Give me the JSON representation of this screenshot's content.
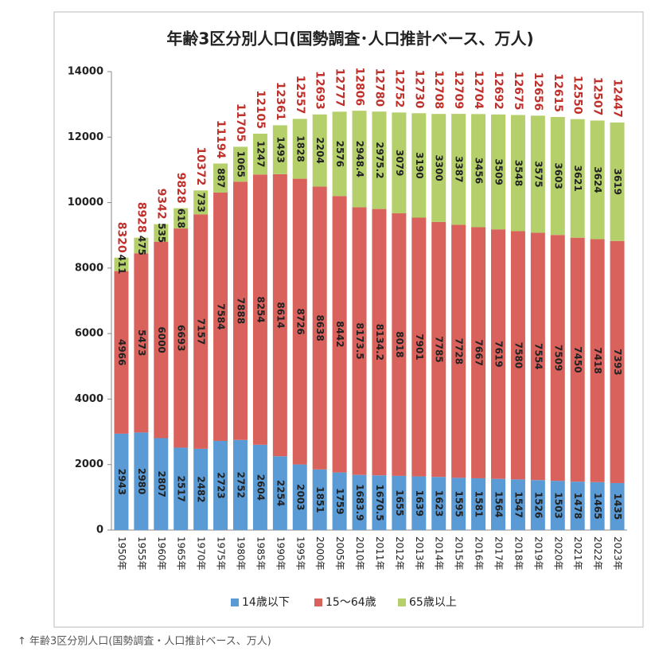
{
  "chart_data": {
    "type": "stacked_bar",
    "title": "年齢3区分別人口(国勢調査･人口推計ベース、万人)",
    "categories": [
      "1950年",
      "1955年",
      "1960年",
      "1965年",
      "1970年",
      "1975年",
      "1980年",
      "1985年",
      "1990年",
      "1995年",
      "2000年",
      "2005年",
      "2010年",
      "2011年",
      "2012年",
      "2013年",
      "2014年",
      "2015年",
      "2016年",
      "2017年",
      "2018年",
      "2019年",
      "2020年",
      "2021年",
      "2022年",
      "2023年"
    ],
    "series": [
      {
        "name": "14歳以下",
        "color": "#5b9bd5",
        "values": [
          2943,
          2980,
          2807,
          2517,
          2482,
          2723,
          2752,
          2604,
          2254,
          2003,
          1851,
          1759,
          1683.9,
          1670.5,
          1655,
          1639,
          1623,
          1595,
          1581,
          1564,
          1547,
          1526,
          1503,
          1478,
          1465,
          1435
        ]
      },
      {
        "name": "15〜64歳",
        "color": "#d9625d",
        "values": [
          4966,
          5473,
          6000,
          6693,
          7157,
          7584,
          7888,
          8254,
          8614,
          8726,
          8638,
          8442,
          8173.5,
          8134.2,
          8018,
          7901,
          7785,
          7728,
          7667,
          7619,
          7580,
          7554,
          7509,
          7450,
          7418,
          7393
        ]
      },
      {
        "name": "65歳以上",
        "color": "#b5cf6b",
        "values": [
          411,
          475,
          535,
          618,
          733,
          887,
          1065,
          1247,
          1493,
          1828,
          2204,
          2576,
          2948.4,
          2975.2,
          3079,
          3190,
          3300,
          3387,
          3456,
          3509,
          3548,
          3575,
          3603,
          3621,
          3624,
          3619
        ]
      }
    ],
    "totals": [
      8320,
      8928,
      9342,
      9828,
      10372,
      11194,
      11705,
      12105,
      12361,
      12557,
      12693,
      12777,
      12806,
      12780,
      12752,
      12730,
      12708,
      12709,
      12704,
      12692,
      12675,
      12656,
      12615,
      12550,
      12507,
      12447
    ],
    "ylim": [
      0,
      14000
    ],
    "yticks": [
      0,
      2000,
      4000,
      6000,
      8000,
      10000,
      12000,
      14000
    ],
    "legend": "bottom"
  },
  "caption": "↑ 年齢3区分別人口(国勢調査・人口推計ベース、万人)"
}
